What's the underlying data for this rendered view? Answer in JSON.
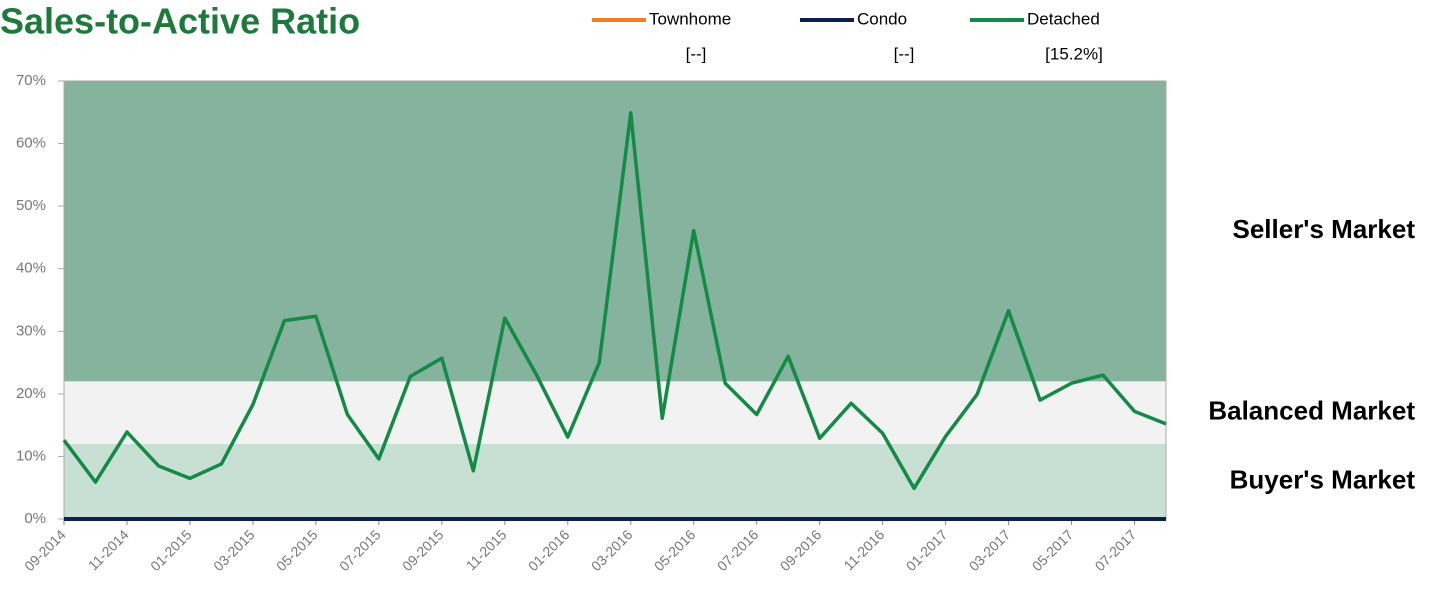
{
  "chart_data": {
    "type": "line",
    "title": "Sales-to-Active Ratio",
    "categories": [
      "09-2014",
      null,
      "11-2014",
      null,
      "01-2015",
      null,
      "03-2015",
      null,
      "05-2015",
      null,
      "07-2015",
      null,
      "09-2015",
      null,
      "11-2015",
      null,
      "01-2016",
      null,
      "03-2016",
      null,
      "05-2016",
      null,
      "07-2016",
      null,
      "09-2016",
      null,
      "11-2016",
      null,
      "01-2017",
      null,
      "03-2017",
      null,
      "05-2017",
      null,
      "07-2017",
      null
    ],
    "series": [
      {
        "name": "Townhome",
        "color": "#f47c20",
        "legend_value": "[--]",
        "values": [
          null,
          null,
          null,
          null,
          null,
          null,
          null,
          null,
          null,
          null,
          null,
          null,
          null,
          null,
          null,
          null,
          null,
          null,
          null,
          null,
          null,
          null,
          null,
          null,
          null,
          null,
          null,
          null,
          null,
          null,
          null,
          null,
          null,
          null,
          null,
          null
        ]
      },
      {
        "name": "Condo",
        "color": "#0d1f4f",
        "legend_value": "[--]",
        "values": [
          0,
          0,
          0,
          0,
          0,
          0,
          0,
          0,
          0,
          0,
          0,
          0,
          0,
          0,
          0,
          0,
          0,
          0,
          0,
          0,
          0,
          0,
          0,
          0,
          0,
          0,
          0,
          0,
          0,
          0,
          0,
          0,
          0,
          0,
          0,
          0
        ]
      },
      {
        "name": "Detached",
        "color": "#138a45",
        "legend_value": "[15.2%]",
        "values": [
          12.6,
          5.9,
          13.9,
          8.5,
          6.5,
          8.8,
          18.3,
          31.7,
          32.4,
          16.7,
          9.6,
          22.8,
          25.7,
          7.7,
          32.1,
          23.1,
          13.1,
          25,
          64.9,
          16.1,
          46.1,
          21.7,
          16.7,
          26,
          12.9,
          18.5,
          13.7,
          4.9,
          13.2,
          19.9,
          33.3,
          19,
          21.7,
          23,
          17.2,
          15.2
        ]
      }
    ],
    "bands": [
      {
        "label": "Buyer's Market",
        "from": 0,
        "to": 12,
        "color": "#c8dfd3"
      },
      {
        "label": "Balanced Market",
        "from": 12,
        "to": 22,
        "color": "#f2f2f2"
      },
      {
        "label": "Seller's Market",
        "from": 22,
        "to": 70,
        "color": "#86b39d"
      }
    ],
    "ylim": [
      0,
      70
    ],
    "yticks": [
      {
        "value": 0,
        "label": "0%"
      },
      {
        "value": 10,
        "label": "10%"
      },
      {
        "value": 20,
        "label": "20%"
      },
      {
        "value": 30,
        "label": "30%"
      },
      {
        "value": 40,
        "label": "40%"
      },
      {
        "value": 50,
        "label": "50%"
      },
      {
        "value": 60,
        "label": "60%"
      },
      {
        "value": 70,
        "label": "70%"
      }
    ]
  }
}
